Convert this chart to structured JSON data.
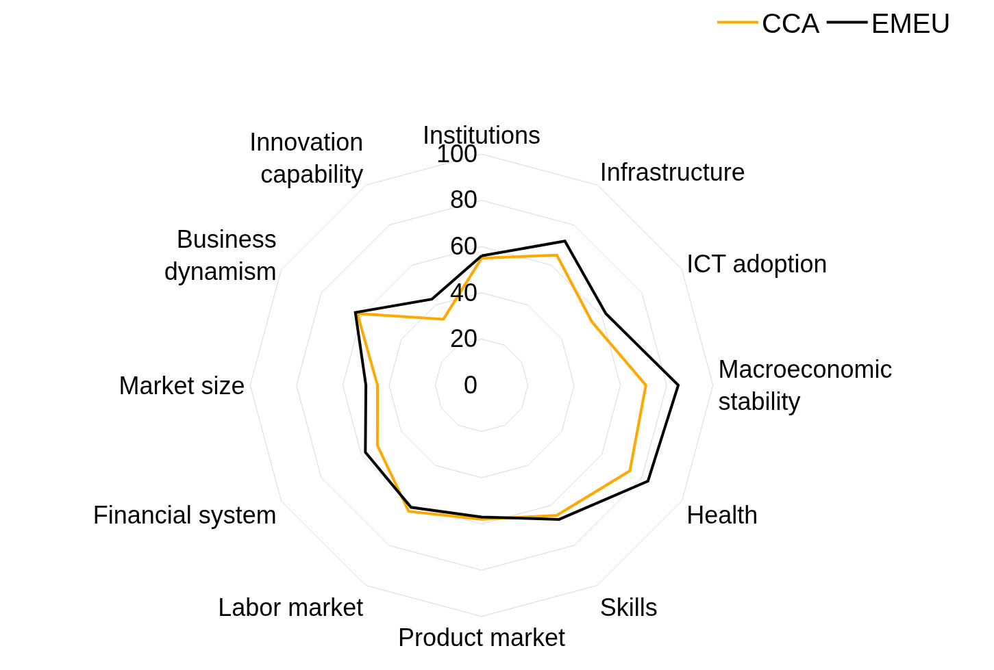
{
  "chart_data": {
    "type": "radar",
    "categories": [
      "Institutions",
      "Infrastructure",
      "ICT adoption",
      "Macroeconomic stability",
      "Health",
      "Skills",
      "Product market",
      "Labor market",
      "Financial system",
      "Market size",
      "Business dynamism",
      "Innovation capability"
    ],
    "series": [
      {
        "name": "CCA",
        "color": "#ffa800",
        "values": [
          55,
          65,
          55,
          71,
          74,
          65,
          58,
          63,
          52,
          45,
          62,
          33
        ]
      },
      {
        "name": "EMEU",
        "color": "#000000",
        "values": [
          56,
          72,
          62,
          85,
          83,
          67,
          57,
          61,
          58,
          50,
          63,
          43
        ]
      }
    ],
    "ylim": [
      0,
      100
    ],
    "yticks": [
      0,
      20,
      40,
      60,
      80,
      100
    ],
    "grid": true,
    "legend": "top right",
    "marker": "none"
  }
}
